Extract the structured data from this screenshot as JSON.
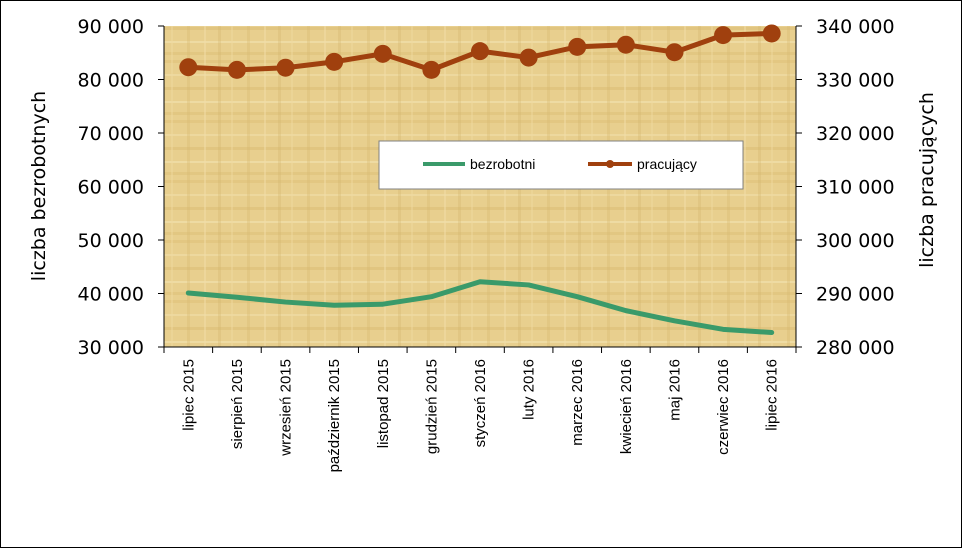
{
  "chart_data": {
    "type": "line",
    "categories": [
      "lipiec 2015",
      "sierpień 2015",
      "wrzesień 2015",
      "październik 2015",
      "listopad 2015",
      "grudzień 2015",
      "styczeń 2016",
      "luty 2016",
      "marzec 2016",
      "kwiecień 2016",
      "maj 2016",
      "czerwiec 2016",
      "lipiec 2016"
    ],
    "ylabel_left": "liczba bezrobotnych",
    "ylabel_right": "liczba pracujących",
    "ylim_left": [
      30000,
      90000
    ],
    "ylim_right": [
      280000,
      340000
    ],
    "yticks_left": [
      "30 000",
      "40 000",
      "50 000",
      "60 000",
      "70 000",
      "80 000",
      "90 000"
    ],
    "yticks_right": [
      "280 000",
      "290 000",
      "300 000",
      "310 000",
      "320 000",
      "330 000",
      "340 000"
    ],
    "legend_position": "center",
    "grid": false,
    "series": [
      {
        "name": "bezrobotni",
        "axis": "left",
        "color": "#3a9a6a",
        "marker": "none",
        "values": [
          40100,
          39300,
          38400,
          37800,
          38000,
          39400,
          42200,
          41600,
          39400,
          36800,
          34900,
          33300,
          32700
        ]
      },
      {
        "name": "pracujący",
        "axis": "right",
        "color": "#a0400e",
        "marker": "circle",
        "values": [
          332300,
          331800,
          332200,
          333300,
          334800,
          331800,
          335300,
          334100,
          336100,
          336500,
          335100,
          338300,
          338600
        ]
      }
    ]
  }
}
